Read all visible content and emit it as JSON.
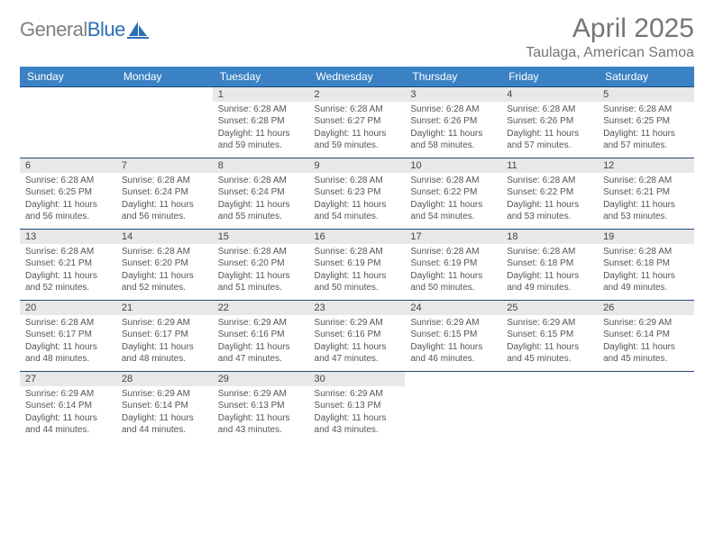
{
  "logo": {
    "general": "General",
    "blue": "Blue"
  },
  "title": "April 2025",
  "location": "Taulaga, American Samoa",
  "colors": {
    "header_blue": "#3b82c4",
    "row_divider": "#1e4a7a",
    "day_num_bg": "#e8e8e8",
    "title_gray": "#757575",
    "logo_gray": "#808080",
    "logo_blue": "#2d6fb5",
    "background": "#ffffff"
  },
  "typography": {
    "title_fontsize": 30,
    "location_fontsize": 16,
    "weekday_fontsize": 12,
    "daynum_fontsize": 11,
    "body_fontsize": 10,
    "font_family": "Arial"
  },
  "layout": {
    "columns": 7,
    "rows": 5,
    "start_weekday": "Sunday"
  },
  "weekdays": [
    "Sunday",
    "Monday",
    "Tuesday",
    "Wednesday",
    "Thursday",
    "Friday",
    "Saturday"
  ],
  "weeks": [
    [
      null,
      null,
      {
        "n": "1",
        "sunrise": "Sunrise: 6:28 AM",
        "sunset": "Sunset: 6:28 PM",
        "day1": "Daylight: 11 hours",
        "day2": "and 59 minutes."
      },
      {
        "n": "2",
        "sunrise": "Sunrise: 6:28 AM",
        "sunset": "Sunset: 6:27 PM",
        "day1": "Daylight: 11 hours",
        "day2": "and 59 minutes."
      },
      {
        "n": "3",
        "sunrise": "Sunrise: 6:28 AM",
        "sunset": "Sunset: 6:26 PM",
        "day1": "Daylight: 11 hours",
        "day2": "and 58 minutes."
      },
      {
        "n": "4",
        "sunrise": "Sunrise: 6:28 AM",
        "sunset": "Sunset: 6:26 PM",
        "day1": "Daylight: 11 hours",
        "day2": "and 57 minutes."
      },
      {
        "n": "5",
        "sunrise": "Sunrise: 6:28 AM",
        "sunset": "Sunset: 6:25 PM",
        "day1": "Daylight: 11 hours",
        "day2": "and 57 minutes."
      }
    ],
    [
      {
        "n": "6",
        "sunrise": "Sunrise: 6:28 AM",
        "sunset": "Sunset: 6:25 PM",
        "day1": "Daylight: 11 hours",
        "day2": "and 56 minutes."
      },
      {
        "n": "7",
        "sunrise": "Sunrise: 6:28 AM",
        "sunset": "Sunset: 6:24 PM",
        "day1": "Daylight: 11 hours",
        "day2": "and 56 minutes."
      },
      {
        "n": "8",
        "sunrise": "Sunrise: 6:28 AM",
        "sunset": "Sunset: 6:24 PM",
        "day1": "Daylight: 11 hours",
        "day2": "and 55 minutes."
      },
      {
        "n": "9",
        "sunrise": "Sunrise: 6:28 AM",
        "sunset": "Sunset: 6:23 PM",
        "day1": "Daylight: 11 hours",
        "day2": "and 54 minutes."
      },
      {
        "n": "10",
        "sunrise": "Sunrise: 6:28 AM",
        "sunset": "Sunset: 6:22 PM",
        "day1": "Daylight: 11 hours",
        "day2": "and 54 minutes."
      },
      {
        "n": "11",
        "sunrise": "Sunrise: 6:28 AM",
        "sunset": "Sunset: 6:22 PM",
        "day1": "Daylight: 11 hours",
        "day2": "and 53 minutes."
      },
      {
        "n": "12",
        "sunrise": "Sunrise: 6:28 AM",
        "sunset": "Sunset: 6:21 PM",
        "day1": "Daylight: 11 hours",
        "day2": "and 53 minutes."
      }
    ],
    [
      {
        "n": "13",
        "sunrise": "Sunrise: 6:28 AM",
        "sunset": "Sunset: 6:21 PM",
        "day1": "Daylight: 11 hours",
        "day2": "and 52 minutes."
      },
      {
        "n": "14",
        "sunrise": "Sunrise: 6:28 AM",
        "sunset": "Sunset: 6:20 PM",
        "day1": "Daylight: 11 hours",
        "day2": "and 52 minutes."
      },
      {
        "n": "15",
        "sunrise": "Sunrise: 6:28 AM",
        "sunset": "Sunset: 6:20 PM",
        "day1": "Daylight: 11 hours",
        "day2": "and 51 minutes."
      },
      {
        "n": "16",
        "sunrise": "Sunrise: 6:28 AM",
        "sunset": "Sunset: 6:19 PM",
        "day1": "Daylight: 11 hours",
        "day2": "and 50 minutes."
      },
      {
        "n": "17",
        "sunrise": "Sunrise: 6:28 AM",
        "sunset": "Sunset: 6:19 PM",
        "day1": "Daylight: 11 hours",
        "day2": "and 50 minutes."
      },
      {
        "n": "18",
        "sunrise": "Sunrise: 6:28 AM",
        "sunset": "Sunset: 6:18 PM",
        "day1": "Daylight: 11 hours",
        "day2": "and 49 minutes."
      },
      {
        "n": "19",
        "sunrise": "Sunrise: 6:28 AM",
        "sunset": "Sunset: 6:18 PM",
        "day1": "Daylight: 11 hours",
        "day2": "and 49 minutes."
      }
    ],
    [
      {
        "n": "20",
        "sunrise": "Sunrise: 6:28 AM",
        "sunset": "Sunset: 6:17 PM",
        "day1": "Daylight: 11 hours",
        "day2": "and 48 minutes."
      },
      {
        "n": "21",
        "sunrise": "Sunrise: 6:29 AM",
        "sunset": "Sunset: 6:17 PM",
        "day1": "Daylight: 11 hours",
        "day2": "and 48 minutes."
      },
      {
        "n": "22",
        "sunrise": "Sunrise: 6:29 AM",
        "sunset": "Sunset: 6:16 PM",
        "day1": "Daylight: 11 hours",
        "day2": "and 47 minutes."
      },
      {
        "n": "23",
        "sunrise": "Sunrise: 6:29 AM",
        "sunset": "Sunset: 6:16 PM",
        "day1": "Daylight: 11 hours",
        "day2": "and 47 minutes."
      },
      {
        "n": "24",
        "sunrise": "Sunrise: 6:29 AM",
        "sunset": "Sunset: 6:15 PM",
        "day1": "Daylight: 11 hours",
        "day2": "and 46 minutes."
      },
      {
        "n": "25",
        "sunrise": "Sunrise: 6:29 AM",
        "sunset": "Sunset: 6:15 PM",
        "day1": "Daylight: 11 hours",
        "day2": "and 45 minutes."
      },
      {
        "n": "26",
        "sunrise": "Sunrise: 6:29 AM",
        "sunset": "Sunset: 6:14 PM",
        "day1": "Daylight: 11 hours",
        "day2": "and 45 minutes."
      }
    ],
    [
      {
        "n": "27",
        "sunrise": "Sunrise: 6:29 AM",
        "sunset": "Sunset: 6:14 PM",
        "day1": "Daylight: 11 hours",
        "day2": "and 44 minutes."
      },
      {
        "n": "28",
        "sunrise": "Sunrise: 6:29 AM",
        "sunset": "Sunset: 6:14 PM",
        "day1": "Daylight: 11 hours",
        "day2": "and 44 minutes."
      },
      {
        "n": "29",
        "sunrise": "Sunrise: 6:29 AM",
        "sunset": "Sunset: 6:13 PM",
        "day1": "Daylight: 11 hours",
        "day2": "and 43 minutes."
      },
      {
        "n": "30",
        "sunrise": "Sunrise: 6:29 AM",
        "sunset": "Sunset: 6:13 PM",
        "day1": "Daylight: 11 hours",
        "day2": "and 43 minutes."
      },
      null,
      null,
      null
    ]
  ]
}
